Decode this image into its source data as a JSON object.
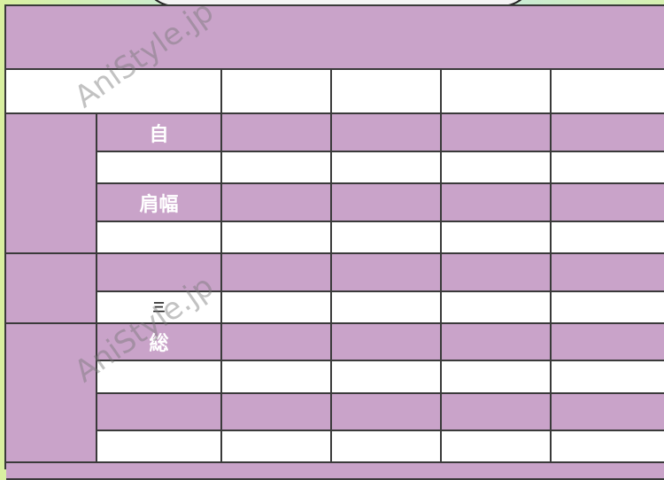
{
  "table": {
    "header": "",
    "labels": {
      "r1": "自",
      "r3": "肩幅",
      "r6": "三",
      "r7": "総"
    }
  },
  "watermark": "AniStyle.jp",
  "colors": {
    "row_fill": "#c9a3c9",
    "alt_fill": "#ffffff",
    "grid": "#3a3a3a"
  }
}
